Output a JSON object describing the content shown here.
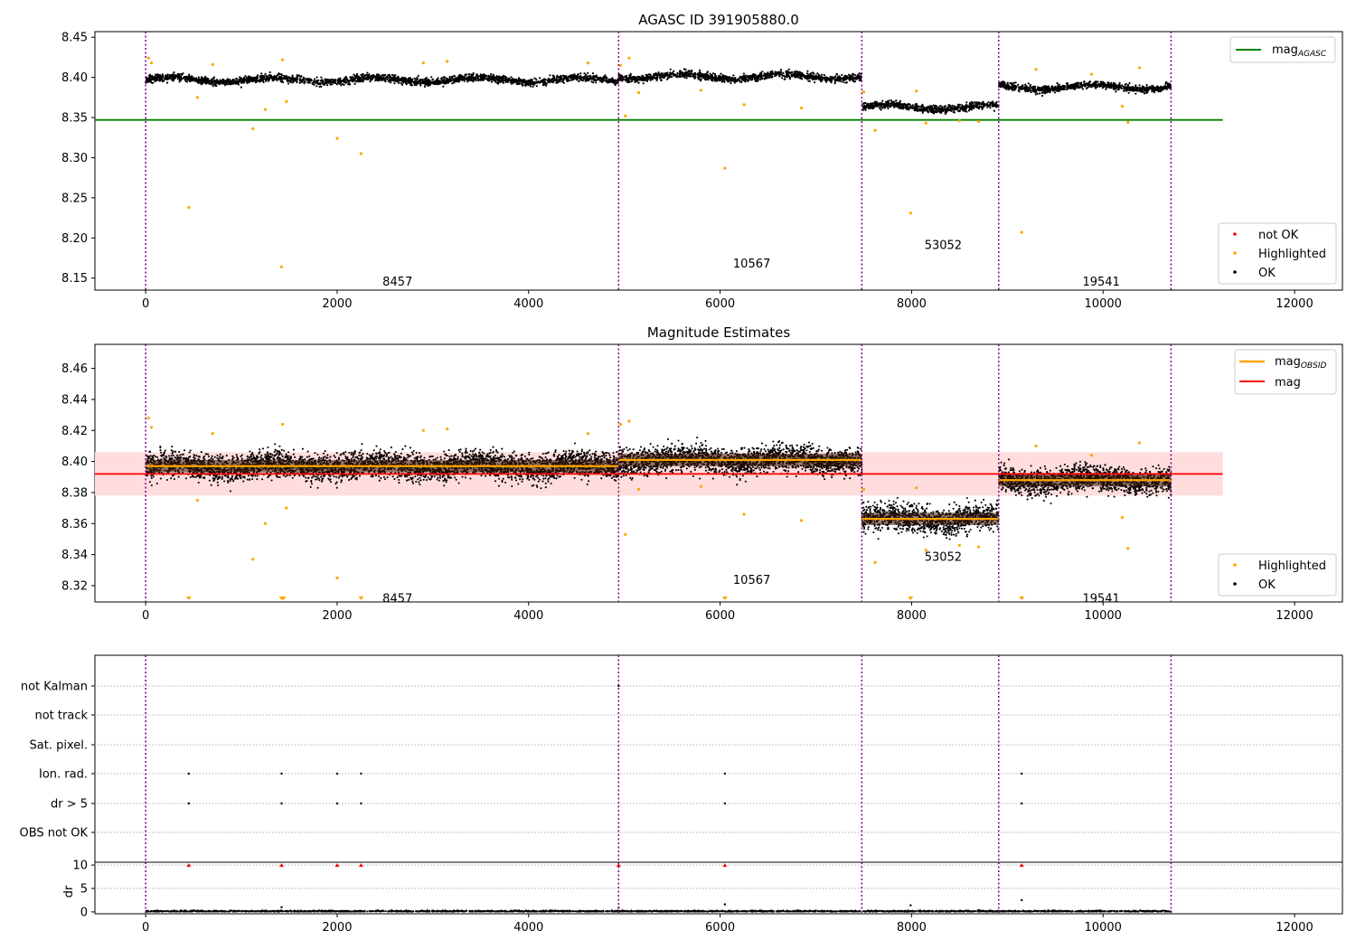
{
  "chart_data": [
    {
      "type": "scatter",
      "title": "AGASC ID 391905880.0",
      "xlim": [
        -530,
        12500
      ],
      "ylim": [
        8.135,
        8.457
      ],
      "xticks": [
        0,
        2000,
        4000,
        6000,
        8000,
        10000,
        12000
      ],
      "yticks": [
        8.15,
        8.2,
        8.25,
        8.3,
        8.35,
        8.4,
        8.45
      ],
      "segments": [
        {
          "obsid": "8457",
          "x0": 0,
          "x1": 4940,
          "mean": 8.397,
          "label_x": 2300,
          "label_y": 8.146
        },
        {
          "obsid": "10567",
          "x0": 4940,
          "x1": 7480,
          "mean": 8.401,
          "label_x": 6000,
          "label_y": 8.169
        },
        {
          "obsid": "53052",
          "x0": 7480,
          "x1": 8910,
          "mean": 8.363,
          "label_x": 8000,
          "label_y": 8.192
        },
        {
          "obsid": "19541",
          "x0": 8910,
          "x1": 10710,
          "mean": 8.388,
          "label_x": 9650,
          "label_y": 8.146
        }
      ],
      "obs_boundaries": [
        0,
        4940,
        7480,
        8910,
        10710
      ],
      "series": [
        {
          "name": "mag_AGASC",
          "type": "line",
          "color": "#008000",
          "x": [
            -530,
            11250
          ],
          "y": [
            8.347,
            8.347
          ]
        }
      ],
      "highlighted": [
        [
          30,
          8.424
        ],
        [
          60,
          8.418
        ],
        [
          450,
          8.238
        ],
        [
          540,
          8.375
        ],
        [
          700,
          8.416
        ],
        [
          1120,
          8.336
        ],
        [
          1250,
          8.36
        ],
        [
          1420,
          8.164
        ],
        [
          1430,
          8.422
        ],
        [
          1470,
          8.37
        ],
        [
          2000,
          8.324
        ],
        [
          2250,
          8.305
        ],
        [
          2900,
          8.418
        ],
        [
          3150,
          8.42
        ],
        [
          4620,
          8.418
        ],
        [
          4960,
          8.415
        ],
        [
          5010,
          8.352
        ],
        [
          5050,
          8.424
        ],
        [
          5150,
          8.381
        ],
        [
          5800,
          8.384
        ],
        [
          6050,
          8.287
        ],
        [
          6250,
          8.366
        ],
        [
          6850,
          8.362
        ],
        [
          7500,
          8.382
        ],
        [
          7620,
          8.334
        ],
        [
          7990,
          8.231
        ],
        [
          8050,
          8.383
        ],
        [
          8150,
          8.343
        ],
        [
          8500,
          8.346
        ],
        [
          8700,
          8.345
        ],
        [
          9150,
          8.207
        ],
        [
          9300,
          8.41
        ],
        [
          9880,
          8.404
        ],
        [
          10200,
          8.364
        ],
        [
          10260,
          8.344
        ],
        [
          10380,
          8.412
        ]
      ],
      "legend": [
        "mag_AGASC",
        "not OK",
        "Highlighted",
        "OK"
      ],
      "legend_placement": [
        "top-right",
        "bottom-right"
      ],
      "colors": {
        "ok": "#000000",
        "highlighted": "#ffa500",
        "not_ok": "#ff0000",
        "agasc": "#008000",
        "boundary": "#800080"
      }
    },
    {
      "type": "scatter",
      "title": "Magnitude Estimates",
      "xlim": [
        -530,
        12500
      ],
      "ylim": [
        8.3095,
        8.4755
      ],
      "xticks": [
        0,
        2000,
        4000,
        6000,
        8000,
        10000,
        12000
      ],
      "yticks": [
        8.32,
        8.34,
        8.36,
        8.38,
        8.4,
        8.42,
        8.44,
        8.46
      ],
      "mag": 8.392,
      "mag_band": [
        8.378,
        8.406
      ],
      "band_xlim": [
        -530,
        11250
      ],
      "segment_label_y": [
        8.312,
        8.324,
        8.339,
        8.312
      ],
      "highlighted": [
        [
          30,
          8.428
        ],
        [
          60,
          8.422
        ],
        [
          540,
          8.375
        ],
        [
          700,
          8.418
        ],
        [
          1120,
          8.337
        ],
        [
          1250,
          8.36
        ],
        [
          1430,
          8.424
        ],
        [
          1470,
          8.37
        ],
        [
          2000,
          8.325
        ],
        [
          2900,
          8.42
        ],
        [
          3150,
          8.421
        ],
        [
          4620,
          8.418
        ],
        [
          4960,
          8.424
        ],
        [
          5010,
          8.353
        ],
        [
          5050,
          8.426
        ],
        [
          5150,
          8.382
        ],
        [
          5800,
          8.384
        ],
        [
          6250,
          8.366
        ],
        [
          6850,
          8.362
        ],
        [
          7500,
          8.382
        ],
        [
          7620,
          8.335
        ],
        [
          8050,
          8.383
        ],
        [
          8150,
          8.343
        ],
        [
          8500,
          8.346
        ],
        [
          8700,
          8.345
        ],
        [
          9300,
          8.41
        ],
        [
          9880,
          8.404
        ],
        [
          10200,
          8.364
        ],
        [
          10260,
          8.344
        ],
        [
          10380,
          8.412
        ]
      ],
      "off_scale_markers_x": [
        450,
        1420,
        1440,
        2250,
        6050,
        7990,
        9150
      ],
      "legend": [
        "mag_OBSID",
        "mag",
        "Highlighted",
        "OK"
      ],
      "colors": {
        "mag_obsid": "#ffa500",
        "mag": "#ff0000",
        "band": "#ffdddd"
      }
    },
    {
      "type": "scatter",
      "title": "",
      "xlim": [
        -530,
        12500
      ],
      "categories": [
        "not Kalman",
        "not track",
        "Sat. pixel.",
        "Ion. rad.",
        "dr > 5",
        "OBS not OK"
      ],
      "flags": {
        "not Kalman": [
          4940
        ],
        "not track": [],
        "Sat. pixel.": [],
        "Ion. rad.": [
          450,
          1420,
          2000,
          2250,
          6050,
          9150
        ],
        "dr > 5": [
          450,
          1420,
          2000,
          2250,
          6050,
          9150
        ],
        "OBS not OK": []
      }
    },
    {
      "type": "scatter",
      "title": "",
      "ylabel": "dr",
      "xlim": [
        -530,
        12500
      ],
      "ylim": [
        -0.4,
        10.6
      ],
      "yticks": [
        0,
        5,
        10
      ],
      "xticks": [
        0,
        2000,
        4000,
        6000,
        8000,
        10000,
        12000
      ],
      "off_scale_markers_x": [
        450,
        1420,
        2000,
        2250,
        4940,
        6050,
        9150
      ],
      "outliers": [
        [
          6050,
          1.6
        ],
        [
          7990,
          1.4
        ],
        [
          9150,
          2.5
        ],
        [
          1420,
          1.0
        ],
        [
          4940,
          0.9
        ]
      ]
    }
  ]
}
